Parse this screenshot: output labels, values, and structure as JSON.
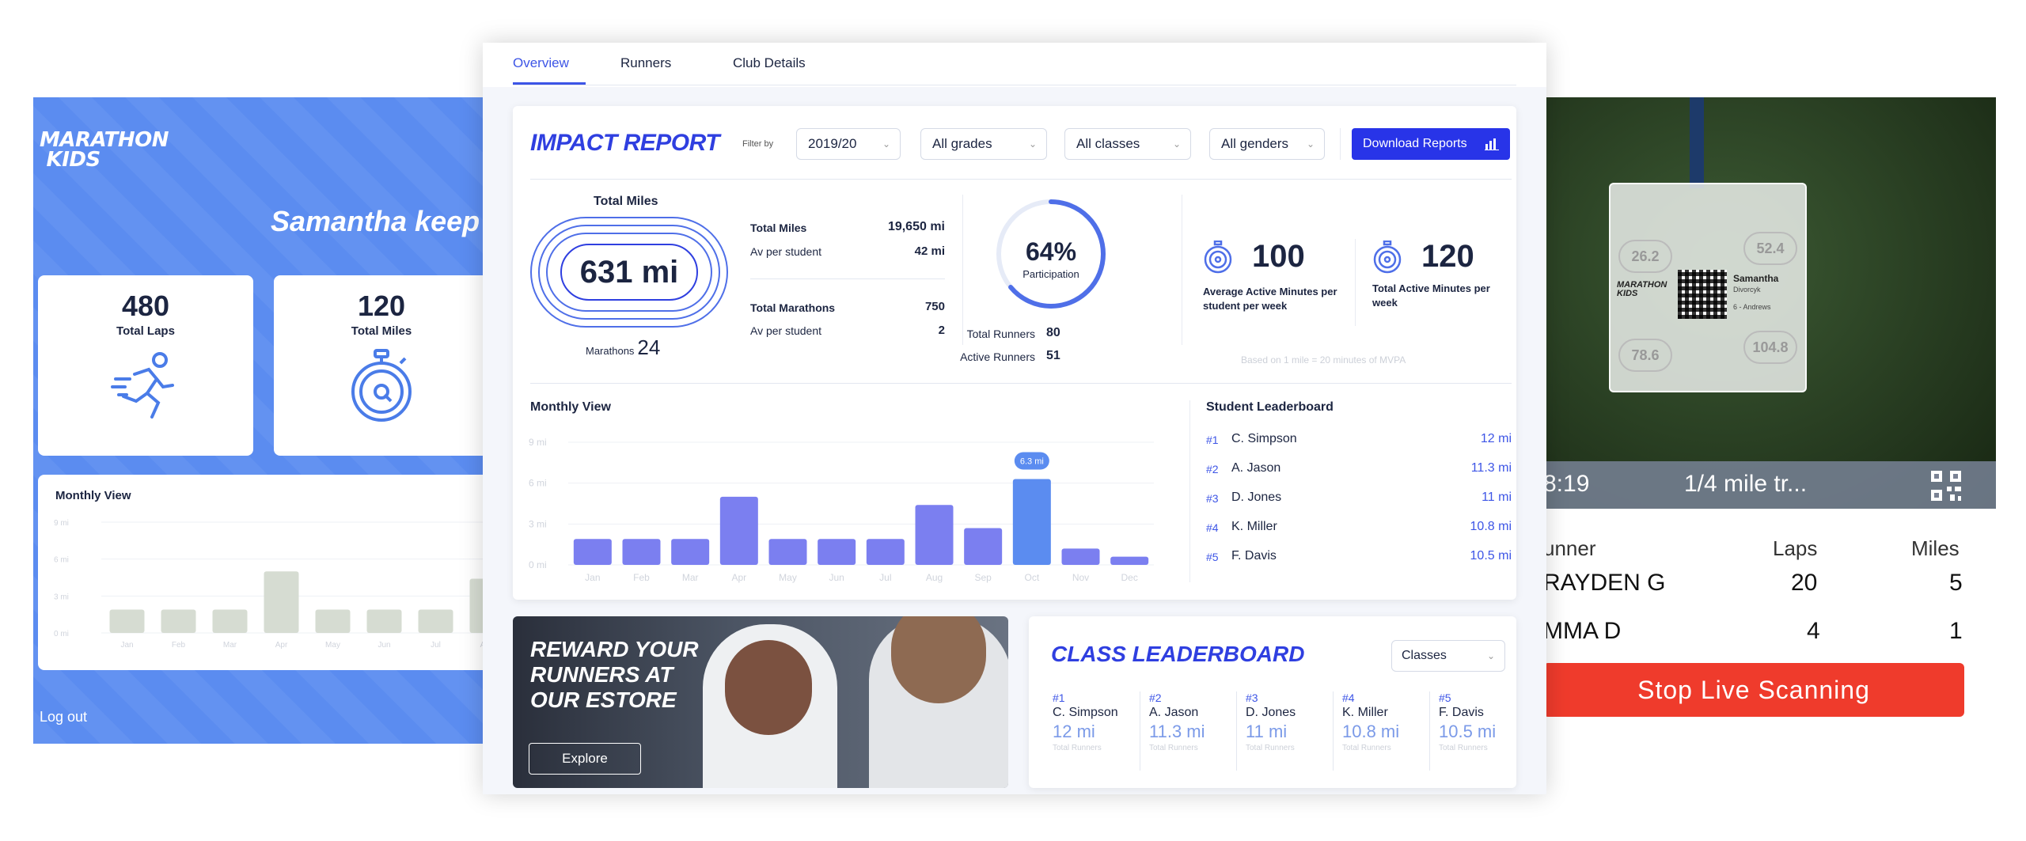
{
  "left_app": {
    "logo": "MARATHON KIDS",
    "welcome": "Samantha keep",
    "cards": [
      {
        "value": "480",
        "label": "Total Laps",
        "icon": "runner-icon"
      },
      {
        "value": "120",
        "label": "Total Miles",
        "icon": "stopwatch-icon"
      }
    ],
    "monthly_title": "Monthly View",
    "logout": "Log out"
  },
  "dashboard": {
    "tabs": [
      "Overview",
      "Runners",
      "Club Details"
    ],
    "active_tab": "Overview",
    "impact_title": "IMPACT REPORT",
    "filter_label": "Filter by",
    "filters": {
      "year": "2019/20",
      "grades": "All grades",
      "classes": "All classes",
      "genders": "All genders"
    },
    "download_label": "Download Reports",
    "total_miles": {
      "title": "Total Miles",
      "value": "631 mi",
      "marathons_label": "Marathons",
      "marathons_value": "24",
      "rows": [
        {
          "label": "Total Miles",
          "value": "19,650 mi"
        },
        {
          "label": "Av per student",
          "value": "42 mi"
        },
        {
          "label": "Total Marathons",
          "value": "750"
        },
        {
          "label": "Av per student",
          "value": "2"
        }
      ]
    },
    "participation": {
      "percent": "64%",
      "percent_value": 64,
      "label": "Participation",
      "total_runners_label": "Total Runners",
      "total_runners": "80",
      "active_runners_label": "Active Runners",
      "active_runners": "51"
    },
    "active_minutes": [
      {
        "value": "100",
        "label": "Average Active Minutes per student per week"
      },
      {
        "value": "120",
        "label": "Total Active Minutes per week"
      }
    ],
    "footnote": "Based on 1 mile = 20 minutes of MVPA",
    "monthly_title": "Monthly View",
    "leaderboard_title": "Student Leaderboard",
    "leaderboard": [
      {
        "rank": "#1",
        "name": "C. Simpson",
        "value": "12 mi"
      },
      {
        "rank": "#2",
        "name": "A. Jason",
        "value": "11.3 mi"
      },
      {
        "rank": "#3",
        "name": "D. Jones",
        "value": "11 mi"
      },
      {
        "rank": "#4",
        "name": "K. Miller",
        "value": "10.8 mi"
      },
      {
        "rank": "#5",
        "name": "F. Davis",
        "value": "10.5 mi"
      }
    ],
    "promo": {
      "text": "REWARD YOUR RUNNERS AT OUR ESTORE",
      "button": "Explore"
    },
    "class_leaderboard": {
      "title": "CLASS LEADERBOARD",
      "select": "Classes",
      "entries": [
        {
          "rank": "#1",
          "name": "C. Simpson",
          "value": "12 mi",
          "sub": "Total Runners"
        },
        {
          "rank": "#2",
          "name": "A. Jason",
          "value": "11.3 mi",
          "sub": "Total Runners"
        },
        {
          "rank": "#3",
          "name": "D. Jones",
          "value": "11 mi",
          "sub": "Total Runners"
        },
        {
          "rank": "#4",
          "name": "K. Miller",
          "value": "10.8 mi",
          "sub": "Total Runners"
        },
        {
          "rank": "#5",
          "name": "F. Davis",
          "value": "10.5 mi",
          "sub": "Total Runners"
        }
      ]
    }
  },
  "scanner_app": {
    "time": "8:19",
    "status": "1/4 mile tr...",
    "badge_name": "Samantha",
    "badge_sub1": "Divorcyk",
    "badge_sub2": "6 - Andrews",
    "badge_logo": "MARATHON KIDS",
    "badge_marks": [
      "26.2",
      "52.4",
      "78.6",
      "104.8"
    ],
    "headers": [
      "unner",
      "Laps",
      "Miles"
    ],
    "rows": [
      {
        "name": "RAYDEN G",
        "laps": "20",
        "miles": "5"
      },
      {
        "name": "MMA D",
        "laps": "4",
        "miles": "1"
      }
    ],
    "stop_button": "Stop Live Scanning"
  },
  "chart_data": [
    {
      "type": "bar",
      "title": "Monthly View",
      "categories": [
        "Jan",
        "Feb",
        "Mar",
        "Apr",
        "May",
        "Jun",
        "Jul",
        "Aug",
        "Sep",
        "Oct",
        "Nov",
        "Dec"
      ],
      "values": [
        1.9,
        1.9,
        1.9,
        5.0,
        1.9,
        1.9,
        1.9,
        4.4,
        2.7,
        6.3,
        1.2,
        0.6
      ],
      "ylim": [
        0,
        9
      ],
      "yticks": [
        "0 mi",
        "3 mi",
        "6 mi",
        "9 mi"
      ],
      "highlight_index": 9,
      "highlight_label": "6.3 mi",
      "colors": {
        "bar": "#7b7ff0",
        "highlight": "#5b8cf0"
      }
    },
    {
      "type": "bar",
      "title": "Monthly View",
      "categories": [
        "Jan",
        "Feb",
        "Mar",
        "Apr",
        "May",
        "Jun",
        "Jul",
        "Aug"
      ],
      "values": [
        1.9,
        1.9,
        1.9,
        5.0,
        1.9,
        1.9,
        1.9,
        4.4
      ],
      "ylim": [
        0,
        9
      ],
      "yticks": [
        "0 mi",
        "3 mi",
        "6 mi",
        "9 mi"
      ],
      "colors": {
        "bar": "#d6dcd2"
      }
    }
  ]
}
